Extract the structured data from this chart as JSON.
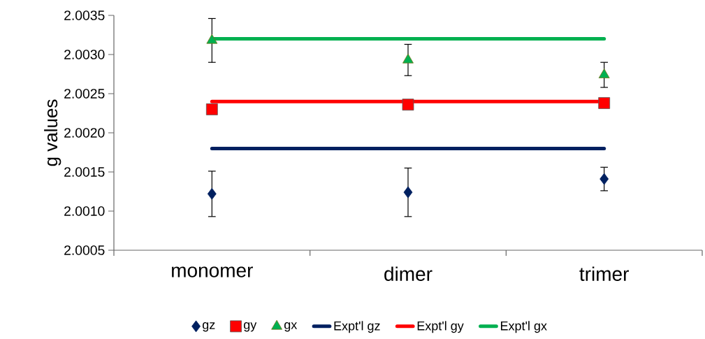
{
  "chart_data": {
    "type": "scatter",
    "ylabel": "g values",
    "categories": [
      "monomer",
      "dimer",
      "trimer"
    ],
    "series": [
      {
        "name": "gz",
        "marker": "diamond",
        "color": "#002060",
        "values": [
          2.00122,
          2.00124,
          2.00141
        ],
        "errors": [
          0.00029,
          0.00031,
          0.00015
        ]
      },
      {
        "name": "gy",
        "marker": "square",
        "color": "#ff0000",
        "values": [
          2.0023,
          2.00236,
          2.00238
        ]
      },
      {
        "name": "gx",
        "marker": "triangle",
        "color": "#00b050",
        "values": [
          2.00318,
          2.00293,
          2.00274
        ],
        "errors": [
          0.00028,
          0.0002,
          0.00016
        ]
      },
      {
        "name": "Expt'l gz",
        "type": "line",
        "marker": "none",
        "color": "#002060",
        "values": [
          2.0018,
          2.0018,
          2.0018
        ]
      },
      {
        "name": "Expt'l gy",
        "type": "line",
        "marker": "none",
        "color": "#ff0000",
        "values": [
          2.0024,
          2.0024,
          2.0024
        ]
      },
      {
        "name": "Expt'l gx",
        "type": "line",
        "marker": "none",
        "color": "#00b050",
        "values": [
          2.0032,
          2.0032,
          2.0032
        ]
      }
    ],
    "ylim": [
      2.0005,
      2.0035
    ],
    "yticks": [
      2.0005,
      {
        "value": 2.001,
        "label": "2.0010"
      },
      2.0015,
      {
        "value": 2.002,
        "label": "2.0020"
      },
      2.0025,
      {
        "value": 2.003,
        "label": "2.0030"
      },
      2.0035
    ],
    "grid": false,
    "legend": "bottom"
  }
}
